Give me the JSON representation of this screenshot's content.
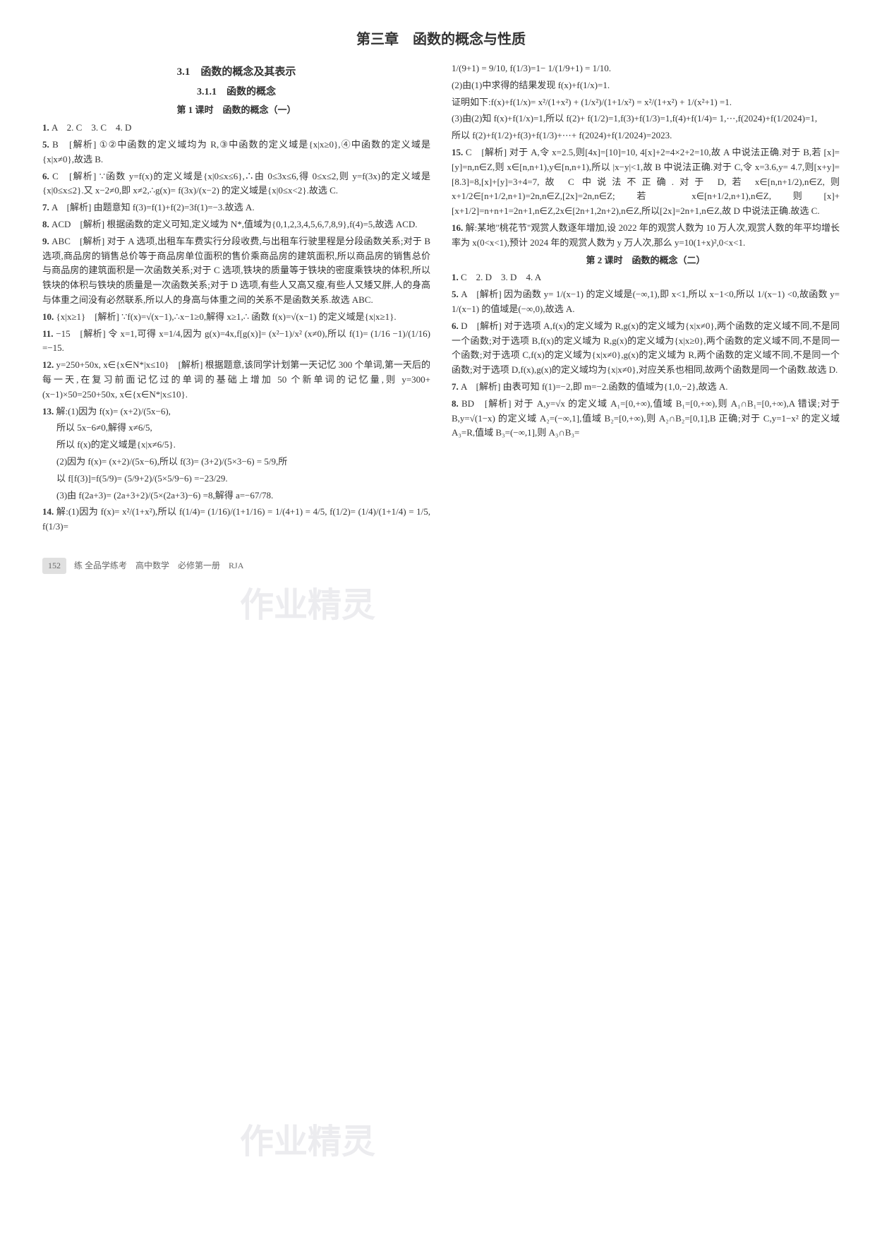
{
  "chapter_title": "第三章　函数的概念与性质",
  "left_col": {
    "section_title": "3.1　函数的概念及其表示",
    "subsection_title": "3.1.1　函数的概念",
    "lesson_title": "第 1 课时　函数的概念（一）",
    "items": [
      {
        "num": "1.",
        "text": "A　2. C　3. C　4. D"
      },
      {
        "num": "5.",
        "text": "B　[解析] ①②中函数的定义域均为 R,③中函数的定义域是{x|x≥0},④中函数的定义域是{x|x≠0},故选 B."
      },
      {
        "num": "6.",
        "text": "C　[解析] ∵函数 y=f(x)的定义域是{x|0≤x≤6},∴由 0≤3x≤6,得 0≤x≤2,则 y=f(3x)的定义域是{x|0≤x≤2}.又 x−2≠0,即 x≠2,∴g(x)= f(3x)/(x−2) 的定义域是{x|0≤x<2}.故选 C."
      },
      {
        "num": "7.",
        "text": "A　[解析] 由题意知 f(3)=f(1)+f(2)=3f(1)=−3.故选 A."
      },
      {
        "num": "8.",
        "text": "ACD　[解析] 根据函数的定义可知,定义域为 N*,值域为{0,1,2,3,4,5,6,7,8,9},f(4)=5,故选 ACD."
      },
      {
        "num": "9.",
        "text": "ABC　[解析] 对于 A 选项,出租车车费实行分段收费,与出租车行驶里程是分段函数关系;对于 B 选项,商品房的销售总价等于商品房单位面积的售价乘商品房的建筑面积,所以商品房的销售总价与商品房的建筑面积是一次函数关系;对于 C 选项,铁块的质量等于铁块的密度乘铁块的体积,所以铁块的体积与铁块的质量是一次函数关系;对于 D 选项,有些人又高又瘦,有些人又矮又胖,人的身高与体重之间没有必然联系,所以人的身高与体重之间的关系不是函数关系.故选 ABC."
      },
      {
        "num": "10.",
        "text": "{x|x≥1}　[解析] ∵f(x)=√(x−1),∴x−1≥0,解得 x≥1,∴ 函数 f(x)=√(x−1) 的定义域是{x|x≥1}."
      },
      {
        "num": "11.",
        "text": "−15　[解析] 令 x=1,可得 x=1/4,因为 g(x)=4x,f[g(x)]= (x²−1)/x² (x≠0),所以 f(1)= (1/16 −1)/(1/16) =−15."
      },
      {
        "num": "12.",
        "text": "y=250+50x, x∈{x∈N*|x≤10}　[解析] 根据题意,该同学计划第一天记忆 300 个单词,第一天后的每一天,在复习前面记忆过的单词的基础上增加 50 个新单词的记忆量,则 y=300+(x−1)×50=250+50x, x∈{x∈N*|x≤10}."
      },
      {
        "num": "13.",
        "text": "解:(1)因为 f(x)= (x+2)/(5x−6),"
      },
      {
        "num": "",
        "text": "所以 5x−6≠0,解得 x≠6/5,",
        "indent": true
      },
      {
        "num": "",
        "text": "所以 f(x)的定义域是{x|x≠6/5}.",
        "indent": true
      },
      {
        "num": "",
        "text": "(2)因为 f(x)= (x+2)/(5x−6),所以 f(3)= (3+2)/(5×3−6) = 5/9,所",
        "indent": true
      },
      {
        "num": "",
        "text": "以 f[f(3)]=f(5/9)= (5/9+2)/(5×5/9−6) =−23/29.",
        "indent": true
      },
      {
        "num": "",
        "text": "(3)由 f(2a+3)= (2a+3+2)/(5×(2a+3)−6) =8,解得 a=−67/78.",
        "indent": true
      },
      {
        "num": "14.",
        "text": "解:(1)因为 f(x)= x²/(1+x²),所以 f(1/4)= (1/16)/(1+1/16) = 1/(4+1) = 4/5, f(1/2)= (1/4)/(1+1/4) = 1/5, f(1/3)="
      }
    ]
  },
  "right_col": {
    "items_top": [
      {
        "num": "",
        "text": "1/(9+1) = 9/10, f(1/3)=1− 1/(1/9+1) = 1/10."
      },
      {
        "num": "",
        "text": "(2)由(1)中求得的结果发现 f(x)+f(1/x)=1."
      },
      {
        "num": "",
        "text": "证明如下:f(x)+f(1/x)= x²/(1+x²) + (1/x²)/(1+1/x²) = x²/(1+x²) + 1/(x²+1) =1."
      },
      {
        "num": "",
        "text": "(3)由(2)知 f(x)+f(1/x)=1,所以 f(2)+ f(1/2)=1,f(3)+f(1/3)=1,f(4)+f(1/4)= 1,⋯,f(2024)+f(1/2024)=1,"
      },
      {
        "num": "",
        "text": "所以 f(2)+f(1/2)+f(3)+f(1/3)+⋯+ f(2024)+f(1/2024)=2023."
      },
      {
        "num": "15.",
        "text": "C　[解析] 对于 A,令 x=2.5,则[4x]=[10]=10, 4[x]+2=4×2+2=10,故 A 中说法正确.对于 B,若 [x]=[y]=n,n∈Z,则 x∈[n,n+1),y∈[n,n+1),所以 |x−y|<1,故 B 中说法正确.对于 C,令 x=3.6,y= 4.7,则[x+y]=[8.3]=8,[x]+[y]=3+4=7,故 C 中说法不正确.对于 D,若 x∈[n,n+1/2),n∈Z,则 x+1/2∈[n+1/2,n+1)=2n,n∈Z,[2x]=2n,n∈Z;若 x∈[n+1/2,n+1),n∈Z,则[x]+[x+1/2]=n+n+1=2n+1,n∈Z,2x∈[2n+1,2n+2),n∈Z,所以[2x]=2n+1,n∈Z,故 D 中说法正确.故选 C."
      },
      {
        "num": "16.",
        "text": "解:某地\"桃花节\"观赏人数逐年增加,设 2022 年的观赏人数为 10 万人次,观赏人数的年平均增长率为 x(0<x<1),预计 2024 年的观赏人数为 y 万人次,那么 y=10(1+x)²,0<x<1."
      }
    ],
    "lesson2_title": "第 2 课时　函数的概念（二）",
    "items_bottom": [
      {
        "num": "1.",
        "text": "C　2. D　3. D　4. A"
      },
      {
        "num": "5.",
        "text": "A　[解析] 因为函数 y= 1/(x−1) 的定义域是(−∞,1),即 x<1,所以 x−1<0,所以 1/(x−1) <0,故函数 y= 1/(x−1) 的值域是(−∞,0),故选 A."
      },
      {
        "num": "6.",
        "text": "D　[解析] 对于选项 A,f(x)的定义域为 R,g(x)的定义域为{x|x≠0},两个函数的定义域不同,不是同一个函数;对于选项 B,f(x)的定义域为 R,g(x)的定义域为{x|x≥0},两个函数的定义域不同,不是同一个函数;对于选项 C,f(x)的定义域为{x|x≠0},g(x)的定义域为 R,两个函数的定义域不同,不是同一个函数;对于选项 D,f(x),g(x)的定义域均为{x|x≠0},对应关系也相同,故两个函数是同一个函数.故选 D."
      },
      {
        "num": "7.",
        "text": "A　[解析] 由表可知 f(1)=−2,即 m=−2.函数的值域为{1,0,−2},故选 A."
      },
      {
        "num": "8.",
        "text": "BD　[解析] 对于 A,y=√x 的定义域 A₁=[0,+∞),值域 B₁=[0,+∞),则 A₁∩B₁=[0,+∞),A 错误;对于 B,y=√(1−x) 的定义域 A₂=(−∞,1],值域 B₂=[0,+∞),则 A₂∩B₂=[0,1],B 正确;对于 C,y=1−x² 的定义域 A₃=R,值域 B₃=(−∞,1],则 A₃∩B₃="
      }
    ]
  },
  "footer": {
    "page": "152",
    "label": "练",
    "book": "全品学练考　高中数学　必修第一册　RJA"
  },
  "watermark1": "作业精灵",
  "watermark2": "作业精灵"
}
